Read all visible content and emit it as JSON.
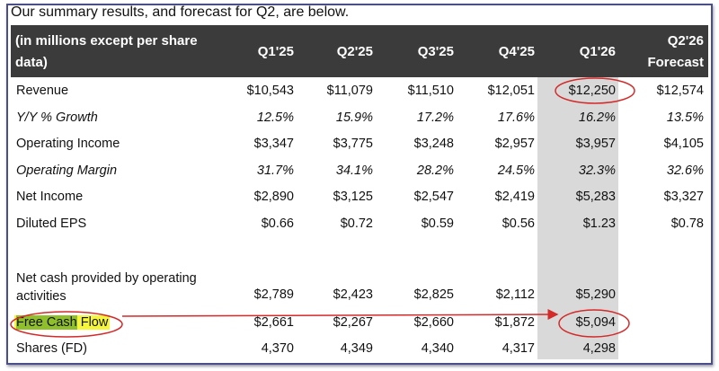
{
  "title": "Our summary results, and forecast for Q2, are below.",
  "table": {
    "header_label_line1": "(in millions except per share",
    "header_label_line2": "data)",
    "columns": [
      "Q1'25",
      "Q2'25",
      "Q3'25",
      "Q4'25",
      "Q1'26"
    ],
    "forecast_col_line1": "Q2'26",
    "forecast_col_line2": "Forecast",
    "rows": [
      {
        "label": "Revenue",
        "italic": false,
        "values": [
          "$10,543",
          "$11,079",
          "$11,510",
          "$12,051",
          "$12,250",
          "$12,574"
        ]
      },
      {
        "label": "Y/Y % Growth",
        "italic": true,
        "values": [
          "12.5%",
          "15.9%",
          "17.2%",
          "17.6%",
          "16.2%",
          "13.5%"
        ]
      },
      {
        "label": "Operating Income",
        "italic": false,
        "values": [
          "$3,347",
          "$3,775",
          "$3,248",
          "$2,957",
          "$3,957",
          "$4,105"
        ]
      },
      {
        "label": "Operating Margin",
        "italic": true,
        "values": [
          "31.7%",
          "34.1%",
          "28.2%",
          "24.5%",
          "32.3%",
          "32.6%"
        ]
      },
      {
        "label": "Net Income",
        "italic": false,
        "values": [
          "$2,890",
          "$3,125",
          "$2,547",
          "$2,419",
          "$5,283",
          "$3,327"
        ]
      },
      {
        "label": "Diluted EPS",
        "italic": false,
        "values": [
          "$0.66",
          "$0.72",
          "$0.59",
          "$0.56",
          "$1.23",
          "$0.78"
        ]
      }
    ],
    "ncfo": {
      "label_line1": "Net cash provided by operating",
      "label_line2": "activities",
      "values": [
        "$2,789",
        "$2,423",
        "$2,825",
        "$2,112",
        "$5,290"
      ]
    },
    "fcf": {
      "label_part1": "Free Cash",
      "label_part2": " Flow",
      "values": [
        "$2,661",
        "$2,267",
        "$2,660",
        "$1,872",
        "$5,094"
      ]
    },
    "shares": {
      "label": "Shares (FD)",
      "values": [
        "4,370",
        "4,349",
        "4,340",
        "4,317",
        "4,298"
      ]
    }
  },
  "colors": {
    "header_bg": "#3b3b3b",
    "highlight_col": "#d9d9d9",
    "annotation": "#d42a2a",
    "marker": "#f5f53a"
  }
}
